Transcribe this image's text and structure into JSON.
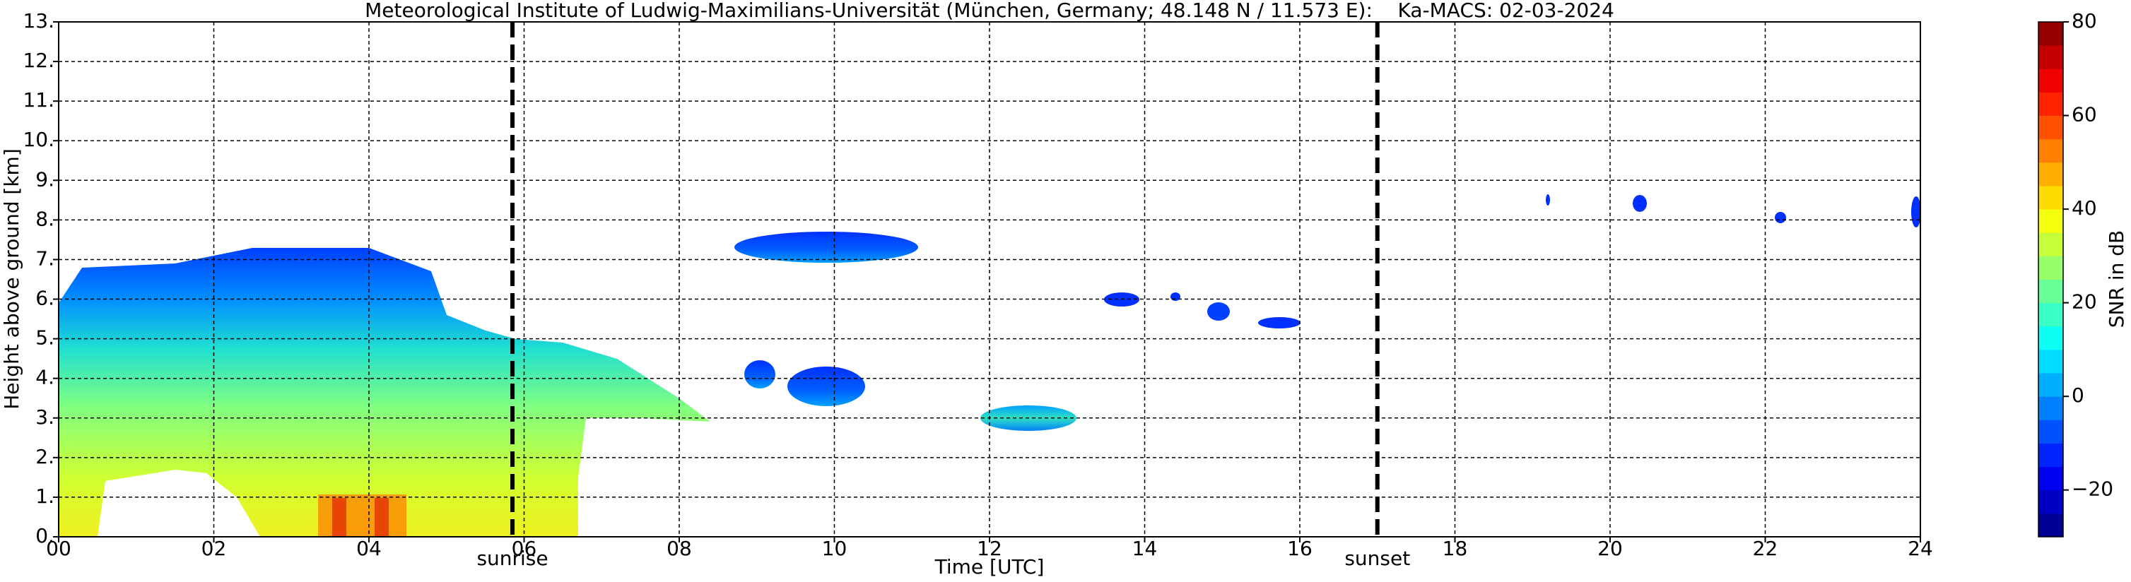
{
  "chart_data": {
    "type": "heatmap",
    "title": "Meteorological Institute of Ludwig-Maximilians-Universität (München, Germany; 48.148 N / 11.573 E):    Ka-MACS: 02-03-2024",
    "x_label": "Time [UTC]",
    "y_label": "Height above ground [km]",
    "xlim": [
      0,
      24
    ],
    "ylim": [
      0,
      13
    ],
    "xticks": [
      {
        "value": 0,
        "label": "00"
      },
      {
        "value": 2,
        "label": "02"
      },
      {
        "value": 4,
        "label": "04"
      },
      {
        "value": 6,
        "label": "06"
      },
      {
        "value": 8,
        "label": "08"
      },
      {
        "value": 10,
        "label": "10"
      },
      {
        "value": 12,
        "label": "12"
      },
      {
        "value": 14,
        "label": "14"
      },
      {
        "value": 16,
        "label": "16"
      },
      {
        "value": 18,
        "label": "18"
      },
      {
        "value": 20,
        "label": "20"
      },
      {
        "value": 22,
        "label": "22"
      },
      {
        "value": 24,
        "label": "24"
      }
    ],
    "yticks": [
      {
        "value": 0,
        "label": "0."
      },
      {
        "value": 1,
        "label": "1."
      },
      {
        "value": 2,
        "label": "2."
      },
      {
        "value": 3,
        "label": "3."
      },
      {
        "value": 4,
        "label": "4."
      },
      {
        "value": 5,
        "label": "5."
      },
      {
        "value": 6,
        "label": "6."
      },
      {
        "value": 7,
        "label": "7."
      },
      {
        "value": 8,
        "label": "8."
      },
      {
        "value": 9,
        "label": "9."
      },
      {
        "value": 10,
        "label": "10."
      },
      {
        "value": 11,
        "label": "11."
      },
      {
        "value": 12,
        "label": "12."
      },
      {
        "value": 13,
        "label": "13."
      }
    ],
    "grid": true,
    "annotations": [
      {
        "x": 5.85,
        "label": "sunrise"
      },
      {
        "x": 17.0,
        "label": "sunset"
      }
    ],
    "colorbar": {
      "label": "SNR in dB",
      "colormap": "jet",
      "clim": [
        -30,
        80
      ],
      "ticks": [
        {
          "value": -20,
          "label": "−20"
        },
        0,
        20,
        40,
        60,
        80
      ]
    }
  }
}
